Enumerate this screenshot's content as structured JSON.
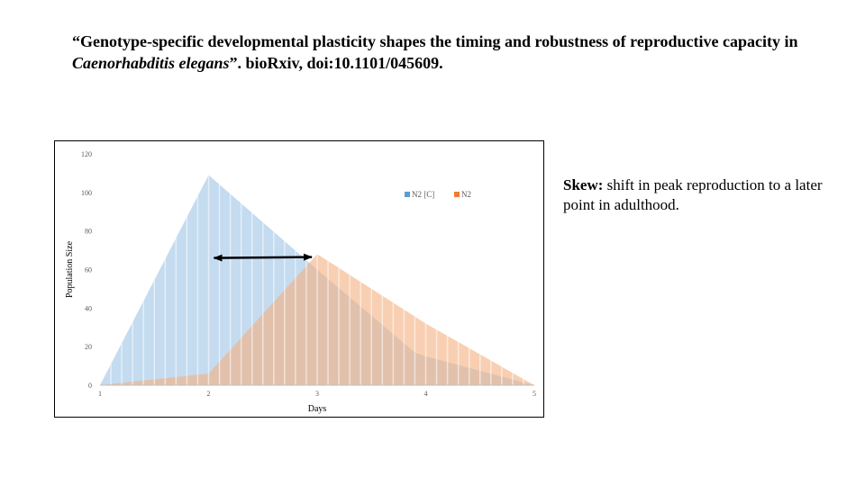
{
  "citation": {
    "part1": "“Genotype-specific developmental plasticity shapes the timing and robustness of reproductive capacity in ",
    "species": "Caenorhabditis elegans",
    "part2": "”. bioRxiv, doi:10.1101/045609."
  },
  "note": {
    "label": "Skew:",
    "text": " shift in peak reproduction to a later point in adulthood."
  },
  "chart_data": {
    "type": "area",
    "xlabel": "Days",
    "ylabel": "Population Size",
    "xlim": [
      1,
      5
    ],
    "ylim": [
      0,
      120
    ],
    "xticks": [
      "1",
      "2",
      "3",
      "4",
      "5"
    ],
    "yticks": [
      "0",
      "20",
      "40",
      "60",
      "80",
      "100",
      "120"
    ],
    "grid": false,
    "legend_position": "top-right",
    "series": [
      {
        "name": "N2 [C]",
        "color": "#9dc3e6",
        "x": [
          1,
          2,
          3,
          3.9,
          4,
          5
        ],
        "y": [
          0,
          109,
          60,
          17,
          15,
          0
        ]
      },
      {
        "name": "N2",
        "color": "#f4b183",
        "x": [
          1,
          2,
          3,
          4,
          5
        ],
        "y": [
          0,
          6,
          68,
          32,
          0
        ]
      }
    ],
    "annotation": {
      "type": "double-arrow",
      "x_from": 2.05,
      "x_to": 2.95,
      "y": 66
    }
  }
}
